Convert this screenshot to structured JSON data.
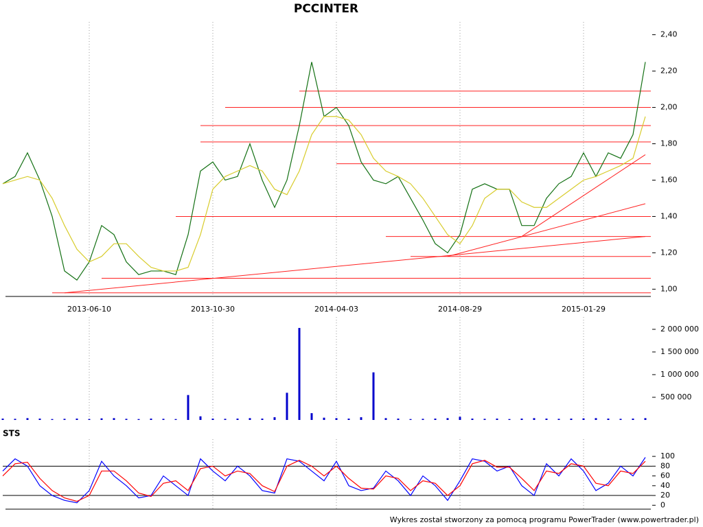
{
  "chart_data": [
    {
      "type": "line",
      "title": "PCCINTER",
      "categories": [
        null,
        null,
        null,
        null,
        null,
        null,
        null,
        "2013-06-10",
        null,
        null,
        null,
        null,
        null,
        null,
        null,
        null,
        null,
        "2013-10-30",
        null,
        null,
        null,
        null,
        null,
        null,
        null,
        null,
        null,
        "2014-04-03",
        null,
        null,
        null,
        null,
        null,
        null,
        null,
        null,
        null,
        "2014-08-29",
        null,
        null,
        null,
        null,
        null,
        null,
        null,
        null,
        null,
        "2015-01-29",
        null,
        null,
        null,
        null,
        null
      ],
      "series": [
        {
          "color": "#137013",
          "values": [
            1.58,
            1.62,
            1.75,
            1.6,
            1.4,
            1.1,
            1.05,
            1.15,
            1.35,
            1.3,
            1.15,
            1.08,
            1.1,
            1.1,
            1.08,
            1.3,
            1.65,
            1.7,
            1.6,
            1.62,
            1.8,
            1.6,
            1.45,
            1.6,
            1.9,
            2.25,
            1.95,
            2.0,
            1.9,
            1.7,
            1.6,
            1.58,
            1.62,
            1.5,
            1.38,
            1.25,
            1.2,
            1.3,
            1.55,
            1.58,
            1.55,
            1.55,
            1.35,
            1.35,
            1.5,
            1.58,
            1.62,
            1.75,
            1.62,
            1.75,
            1.72,
            1.85,
            2.25
          ]
        },
        {
          "color": "#d8cc2c",
          "values": [
            1.58,
            1.6,
            1.62,
            1.6,
            1.5,
            1.35,
            1.22,
            1.15,
            1.18,
            1.25,
            1.25,
            1.18,
            1.12,
            1.1,
            1.1,
            1.12,
            1.3,
            1.55,
            1.62,
            1.65,
            1.68,
            1.65,
            1.55,
            1.52,
            1.65,
            1.85,
            1.95,
            1.95,
            1.93,
            1.85,
            1.72,
            1.65,
            1.62,
            1.58,
            1.5,
            1.4,
            1.3,
            1.25,
            1.35,
            1.5,
            1.55,
            1.55,
            1.48,
            1.45,
            1.45,
            1.5,
            1.55,
            1.6,
            1.62,
            1.65,
            1.68,
            1.72,
            1.95
          ]
        }
      ],
      "hlines": [
        {
          "y": 2.09,
          "x": 24
        },
        {
          "y": 2.0,
          "x": 18
        },
        {
          "y": 1.9,
          "x": 16
        },
        {
          "y": 1.81,
          "x": 16
        },
        {
          "y": 1.69,
          "x": 27
        },
        {
          "y": 1.4,
          "x": 14
        },
        {
          "y": 1.29,
          "x": 31
        },
        {
          "y": 1.18,
          "x": 33
        },
        {
          "y": 1.06,
          "x": 8
        },
        {
          "y": 0.98,
          "x": 4
        }
      ],
      "trendlines": [
        {
          "x": [
            5,
            52
          ],
          "y": [
            0.98,
            1.29
          ]
        },
        {
          "x": [
            36,
            52
          ],
          "y": [
            1.18,
            1.47
          ]
        },
        {
          "x": [
            42,
            52
          ],
          "y": [
            1.29,
            1.74
          ]
        }
      ],
      "line_color": "#ff2020",
      "ylim": [
        0.96,
        2.44
      ],
      "yticks": [
        {
          "value": 1.0,
          "label": "1,00"
        },
        {
          "value": 1.2,
          "label": "1,20"
        },
        {
          "value": 1.4,
          "label": "1,40"
        },
        {
          "value": 1.6,
          "label": "1,60"
        },
        {
          "value": 1.8,
          "label": "1,80"
        },
        {
          "value": 2.0,
          "label": "2,00"
        },
        {
          "value": 2.2,
          "label": "2,20"
        },
        {
          "value": 2.4,
          "label": "2,40"
        }
      ],
      "grid": true
    },
    {
      "type": "bar",
      "color": "#0000cc",
      "values": [
        30000,
        25000,
        40000,
        30000,
        20000,
        25000,
        30000,
        20000,
        35000,
        40000,
        25000,
        20000,
        30000,
        25000,
        20000,
        550000,
        80000,
        30000,
        25000,
        30000,
        40000,
        30000,
        60000,
        600000,
        2030000,
        150000,
        50000,
        40000,
        30000,
        60000,
        1050000,
        40000,
        30000,
        20000,
        25000,
        30000,
        40000,
        70000,
        30000,
        25000,
        30000,
        20000,
        30000,
        40000,
        30000,
        25000,
        30000,
        35000,
        40000,
        30000,
        25000,
        30000,
        40000
      ],
      "ylim": [
        0,
        2150000
      ],
      "yticks": [
        {
          "value": 500000,
          "label": "500 000"
        },
        {
          "value": 1000000,
          "label": "1 000 000"
        },
        {
          "value": 1500000,
          "label": "1 500 000"
        },
        {
          "value": 2000000,
          "label": "2 000 000"
        }
      ],
      "grid": true
    },
    {
      "type": "line",
      "title": "STS",
      "series": [
        {
          "color": "#0000ff",
          "values": [
            70,
            95,
            80,
            40,
            20,
            10,
            5,
            30,
            90,
            60,
            40,
            15,
            20,
            60,
            40,
            20,
            95,
            70,
            50,
            80,
            60,
            30,
            25,
            95,
            90,
            70,
            50,
            90,
            40,
            30,
            35,
            70,
            50,
            20,
            60,
            40,
            10,
            50,
            95,
            90,
            70,
            80,
            40,
            20,
            85,
            60,
            95,
            70,
            30,
            45,
            80,
            60,
            98
          ]
        },
        {
          "color": "#ff0000",
          "values": [
            60,
            85,
            88,
            55,
            30,
            15,
            8,
            20,
            70,
            70,
            50,
            25,
            18,
            45,
            50,
            30,
            75,
            80,
            60,
            70,
            65,
            40,
            28,
            80,
            92,
            80,
            60,
            80,
            55,
            35,
            33,
            60,
            55,
            30,
            50,
            45,
            20,
            40,
            85,
            92,
            78,
            78,
            55,
            30,
            70,
            65,
            85,
            80,
            45,
            40,
            70,
            65,
            90
          ]
        }
      ],
      "levels": [
        20,
        80
      ],
      "ylim": [
        -8,
        124
      ],
      "yticks": [
        0,
        20,
        40,
        60,
        80,
        100
      ],
      "grid": true
    }
  ],
  "footer": "Wykres został stworzony za pomocą programu PowerTrader (www.powertrader.pl)"
}
